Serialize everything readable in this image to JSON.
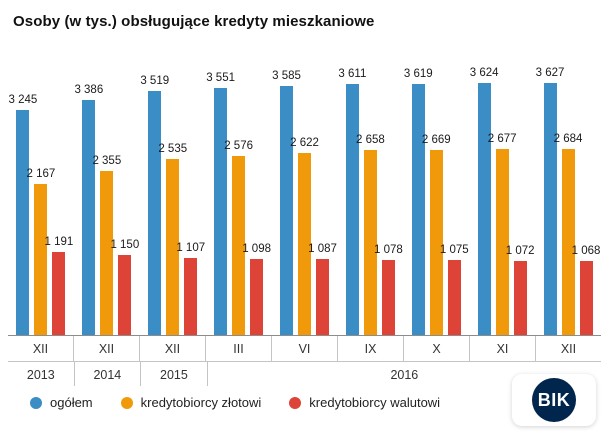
{
  "title": "Osoby (w tys.) obsługujące kredyty mieszkaniowe",
  "chart_data": {
    "type": "bar",
    "x_months": [
      "XII",
      "XII",
      "XII",
      "III",
      "VI",
      "IX",
      "X",
      "XI",
      "XII"
    ],
    "x_years": [
      {
        "label": "2013",
        "span": 1
      },
      {
        "label": "2014",
        "span": 1
      },
      {
        "label": "2015",
        "span": 1
      },
      {
        "label": "2016",
        "span": 6
      }
    ],
    "series": [
      {
        "name": "ogółem",
        "color": "#3a8dc5",
        "values": [
          3245,
          3386,
          3519,
          3551,
          3585,
          3611,
          3619,
          3624,
          3627
        ]
      },
      {
        "name": "kredytobiorcy złotowi",
        "color": "#f0990b",
        "values": [
          2167,
          2355,
          2535,
          2576,
          2622,
          2658,
          2669,
          2677,
          2684
        ]
      },
      {
        "name": "kredytobiorcy walutowi",
        "color": "#de4338",
        "values": [
          1191,
          1150,
          1107,
          1098,
          1087,
          1078,
          1075,
          1072,
          1068
        ]
      }
    ],
    "ylim": [
      0,
      3700
    ],
    "grid": false,
    "legend_position": "bottom-left",
    "value_labels": true
  },
  "logo": {
    "text": "BIK"
  }
}
